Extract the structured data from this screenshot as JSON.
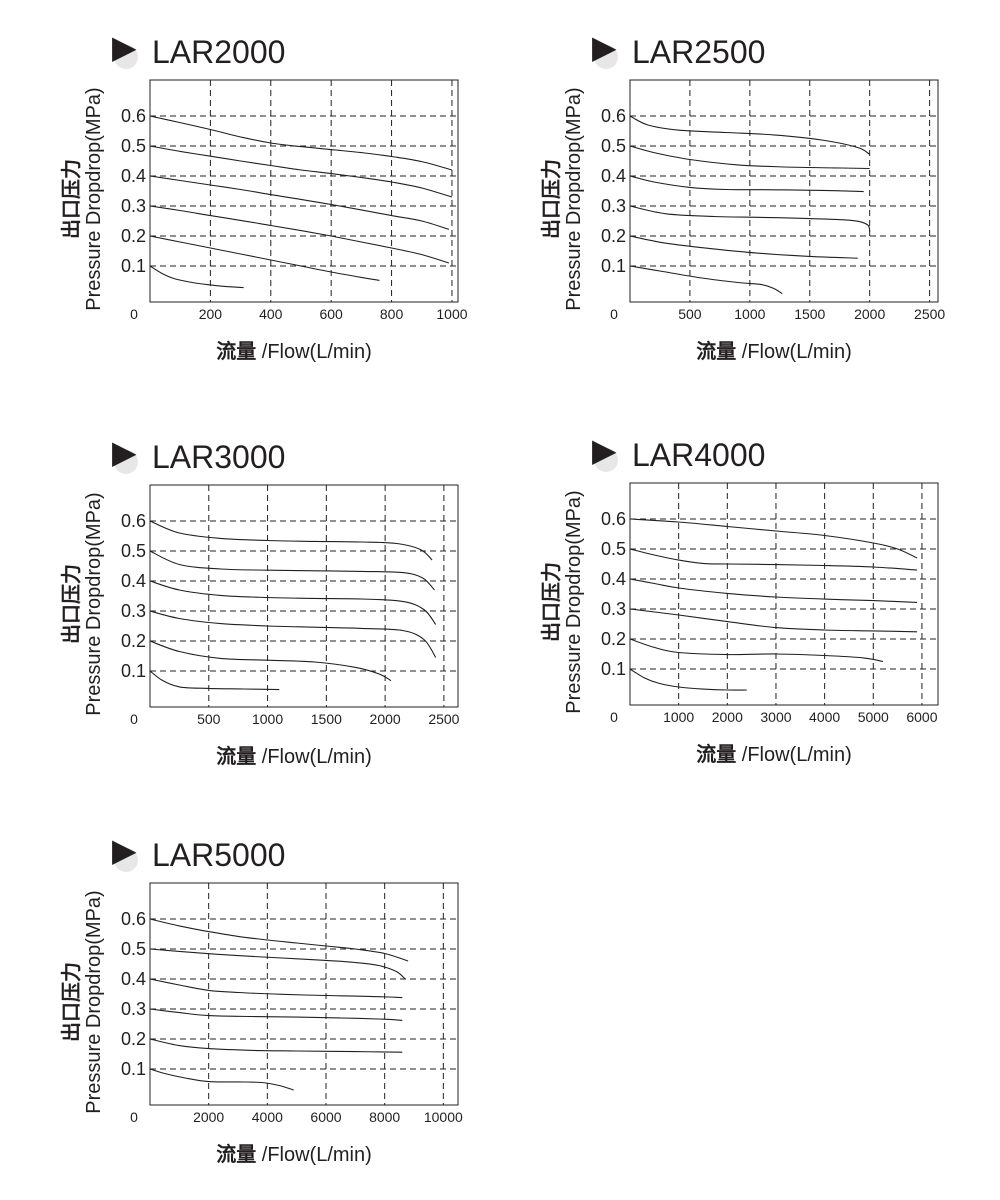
{
  "colors": {
    "ink": "#231f20",
    "grid": "#231f20",
    "title_shadow": "#bbbbbb"
  },
  "common": {
    "ylabel_cn": "出口压力",
    "ylabel_en": "Pressure Dropdrop(MPa)",
    "xlabel_cn": "流量",
    "xlabel_en": " /Flow(L/min)",
    "title_marker": "▶"
  },
  "chart_data": [
    {
      "type": "line",
      "title": "LAR2000",
      "xlabel": "流量 /Flow(L/min)",
      "ylabel": "出口压力 Pressure Dropdrop(MPa)",
      "xlim": [
        0,
        1020
      ],
      "ylim": [
        -0.02,
        0.72
      ],
      "xticks": [
        0,
        200,
        400,
        600,
        800,
        1000
      ],
      "xtick_labels": [
        "0",
        "200",
        "400",
        "600",
        "800",
        "1000"
      ],
      "yticks": [
        0.1,
        0.2,
        0.3,
        0.4,
        0.5,
        0.6
      ],
      "ytick_labels": [
        "0.1",
        "0.2",
        "0.3",
        "0.4",
        "0.5",
        "0.6"
      ],
      "grid": true,
      "series": [
        {
          "x": [
            0,
            100,
            200,
            300,
            400,
            500,
            600,
            700,
            800,
            900,
            1000
          ],
          "y": [
            0.6,
            0.578,
            0.555,
            0.53,
            0.51,
            0.498,
            0.488,
            0.478,
            0.465,
            0.448,
            0.42
          ]
        },
        {
          "x": [
            0,
            100,
            200,
            300,
            400,
            500,
            600,
            700,
            800,
            900,
            1000
          ],
          "y": [
            0.5,
            0.482,
            0.466,
            0.45,
            0.435,
            0.42,
            0.408,
            0.395,
            0.38,
            0.36,
            0.33
          ]
        },
        {
          "x": [
            0,
            100,
            200,
            300,
            400,
            500,
            600,
            700,
            800,
            900,
            990
          ],
          "y": [
            0.4,
            0.385,
            0.37,
            0.355,
            0.338,
            0.322,
            0.305,
            0.287,
            0.268,
            0.25,
            0.222
          ]
        },
        {
          "x": [
            0,
            100,
            200,
            300,
            400,
            500,
            600,
            700,
            800,
            900,
            990
          ],
          "y": [
            0.3,
            0.285,
            0.268,
            0.252,
            0.235,
            0.218,
            0.2,
            0.18,
            0.16,
            0.138,
            0.11
          ]
        },
        {
          "x": [
            0,
            100,
            200,
            300,
            400,
            500,
            600,
            700,
            760
          ],
          "y": [
            0.2,
            0.18,
            0.16,
            0.14,
            0.12,
            0.1,
            0.08,
            0.062,
            0.052
          ]
        },
        {
          "x": [
            0,
            40,
            80,
            140,
            200,
            260,
            310
          ],
          "y": [
            0.1,
            0.075,
            0.058,
            0.045,
            0.037,
            0.031,
            0.028
          ]
        }
      ]
    },
    {
      "type": "line",
      "title": "LAR2500",
      "xlabel": "流量 /Flow(L/min)",
      "ylabel": "出口压力 Pressure Dropdrop(MPa)",
      "xlim": [
        0,
        2570
      ],
      "ylim": [
        -0.02,
        0.72
      ],
      "xticks": [
        0,
        500,
        1000,
        1500,
        2000,
        2500
      ],
      "xtick_labels": [
        "0",
        "500",
        "1000",
        "1500",
        "2000",
        "2500"
      ],
      "yticks": [
        0.1,
        0.2,
        0.3,
        0.4,
        0.5,
        0.6
      ],
      "ytick_labels": [
        "0.1",
        "0.2",
        "0.3",
        "0.4",
        "0.5",
        "0.6"
      ],
      "grid": true,
      "series": [
        {
          "x": [
            0,
            150,
            400,
            800,
            1200,
            1600,
            1900,
            2000
          ],
          "y": [
            0.6,
            0.57,
            0.553,
            0.545,
            0.537,
            0.52,
            0.495,
            0.472
          ]
        },
        {
          "x": [
            0,
            200,
            500,
            900,
            1300,
            1700,
            2000
          ],
          "y": [
            0.5,
            0.478,
            0.455,
            0.437,
            0.43,
            0.427,
            0.425
          ]
        },
        {
          "x": [
            0,
            200,
            500,
            800,
            1200,
            1600,
            1950
          ],
          "y": [
            0.4,
            0.38,
            0.362,
            0.355,
            0.354,
            0.352,
            0.348
          ]
        },
        {
          "x": [
            0,
            300,
            700,
            1100,
            1500,
            1850,
            1980,
            2000
          ],
          "y": [
            0.3,
            0.274,
            0.265,
            0.262,
            0.258,
            0.252,
            0.238,
            0.215
          ]
        },
        {
          "x": [
            0,
            300,
            700,
            1100,
            1500,
            1900
          ],
          "y": [
            0.2,
            0.176,
            0.157,
            0.142,
            0.132,
            0.126
          ]
        },
        {
          "x": [
            0,
            300,
            600,
            900,
            1100,
            1200,
            1270
          ],
          "y": [
            0.1,
            0.08,
            0.06,
            0.045,
            0.038,
            0.025,
            0.008
          ]
        }
      ]
    },
    {
      "type": "line",
      "title": "LAR3000",
      "xlabel": "流量 /Flow(L/min)",
      "ylabel": "出口压力 Pressure Dropdrop(MPa)",
      "xlim": [
        0,
        2620
      ],
      "ylim": [
        -0.02,
        0.72
      ],
      "xticks": [
        0,
        500,
        1000,
        1500,
        2000,
        2500
      ],
      "xtick_labels": [
        "0",
        "500",
        "1000",
        "1500",
        "2000",
        "2500"
      ],
      "yticks": [
        0.1,
        0.2,
        0.3,
        0.4,
        0.5,
        0.6
      ],
      "ytick_labels": [
        "0.1",
        "0.2",
        "0.3",
        "0.4",
        "0.5",
        "0.6"
      ],
      "grid": true,
      "series": [
        {
          "x": [
            0,
            250,
            600,
            1000,
            1400,
            1800,
            2100,
            2300,
            2400
          ],
          "y": [
            0.6,
            0.56,
            0.542,
            0.535,
            0.532,
            0.53,
            0.525,
            0.505,
            0.47
          ]
        },
        {
          "x": [
            0,
            250,
            600,
            1000,
            1400,
            1800,
            2150,
            2320,
            2420
          ],
          "y": [
            0.5,
            0.455,
            0.44,
            0.436,
            0.434,
            0.432,
            0.428,
            0.41,
            0.37
          ]
        },
        {
          "x": [
            0,
            250,
            600,
            1000,
            1400,
            1800,
            2150,
            2330,
            2430
          ],
          "y": [
            0.4,
            0.37,
            0.352,
            0.345,
            0.342,
            0.34,
            0.332,
            0.305,
            0.255
          ]
        },
        {
          "x": [
            0,
            250,
            600,
            1000,
            1400,
            1800,
            2150,
            2330,
            2430
          ],
          "y": [
            0.3,
            0.275,
            0.258,
            0.25,
            0.246,
            0.242,
            0.235,
            0.205,
            0.145
          ]
        },
        {
          "x": [
            0,
            250,
            600,
            1000,
            1400,
            1750,
            1950,
            2050
          ],
          "y": [
            0.2,
            0.165,
            0.142,
            0.136,
            0.13,
            0.112,
            0.09,
            0.068
          ]
        },
        {
          "x": [
            0,
            100,
            250,
            500,
            800,
            1100
          ],
          "y": [
            0.1,
            0.07,
            0.047,
            0.042,
            0.04,
            0.038
          ]
        }
      ]
    },
    {
      "type": "line",
      "title": "LAR4000",
      "xlabel": "流量 /Flow(L/min)",
      "ylabel": "出口压力 Pressure Dropdrop(MPa)",
      "xlim": [
        0,
        6330
      ],
      "ylim": [
        -0.02,
        0.72
      ],
      "xticks": [
        0,
        1000,
        2000,
        3000,
        4000,
        5000,
        6000
      ],
      "xtick_labels": [
        "0",
        "1000",
        "2000",
        "3000",
        "4000",
        "5000",
        "6000"
      ],
      "yticks": [
        0.1,
        0.2,
        0.3,
        0.4,
        0.5,
        0.6
      ],
      "ytick_labels": [
        "0.1",
        "0.2",
        "0.3",
        "0.4",
        "0.5",
        "0.6"
      ],
      "grid": true,
      "series": [
        {
          "x": [
            0,
            1000,
            2000,
            3000,
            4000,
            5000,
            5500,
            5900
          ],
          "y": [
            0.6,
            0.59,
            0.575,
            0.56,
            0.545,
            0.52,
            0.5,
            0.47
          ]
        },
        {
          "x": [
            0,
            500,
            1000,
            1500,
            2000,
            3000,
            4000,
            5000,
            5900
          ],
          "y": [
            0.5,
            0.48,
            0.463,
            0.452,
            0.45,
            0.448,
            0.445,
            0.44,
            0.43
          ]
        },
        {
          "x": [
            0,
            500,
            1000,
            2000,
            3000,
            4000,
            5000,
            5900
          ],
          "y": [
            0.4,
            0.385,
            0.37,
            0.352,
            0.34,
            0.333,
            0.328,
            0.322
          ]
        },
        {
          "x": [
            0,
            1000,
            2000,
            3000,
            4000,
            5000,
            5900
          ],
          "y": [
            0.3,
            0.28,
            0.258,
            0.238,
            0.23,
            0.227,
            0.224
          ]
        },
        {
          "x": [
            0,
            500,
            1000,
            2000,
            3000,
            4000,
            4800,
            5200
          ],
          "y": [
            0.2,
            0.172,
            0.155,
            0.148,
            0.15,
            0.145,
            0.137,
            0.125
          ]
        },
        {
          "x": [
            0,
            300,
            600,
            1000,
            1500,
            2000,
            2400
          ],
          "y": [
            0.1,
            0.07,
            0.052,
            0.04,
            0.033,
            0.03,
            0.03
          ]
        }
      ]
    },
    {
      "type": "line",
      "title": "LAR5000",
      "xlabel": "流量 /Flow(L/min)",
      "ylabel": "出口压力 Pressure Dropdrop(MPa)",
      "xlim": [
        0,
        10500
      ],
      "ylim": [
        -0.02,
        0.72
      ],
      "xticks": [
        0,
        2000,
        4000,
        6000,
        8000,
        10000
      ],
      "xtick_labels": [
        "0",
        "2000",
        "4000",
        "6000",
        "8000",
        "10000"
      ],
      "yticks": [
        0.1,
        0.2,
        0.3,
        0.4,
        0.5,
        0.6
      ],
      "ytick_labels": [
        "0.1",
        "0.2",
        "0.3",
        "0.4",
        "0.5",
        "0.6"
      ],
      "grid": true,
      "series": [
        {
          "x": [
            0,
            1000,
            2000,
            3000,
            4000,
            5000,
            6000,
            7000,
            8000,
            8800
          ],
          "y": [
            0.6,
            0.577,
            0.558,
            0.542,
            0.53,
            0.52,
            0.51,
            0.5,
            0.485,
            0.46
          ]
        },
        {
          "x": [
            0,
            1500,
            3000,
            4500,
            6000,
            7000,
            7800,
            8400,
            8700
          ],
          "y": [
            0.5,
            0.488,
            0.478,
            0.47,
            0.462,
            0.455,
            0.445,
            0.425,
            0.4
          ]
        },
        {
          "x": [
            0,
            1000,
            2000,
            3000,
            4500,
            6000,
            7500,
            8600
          ],
          "y": [
            0.4,
            0.38,
            0.362,
            0.355,
            0.349,
            0.345,
            0.342,
            0.338
          ]
        },
        {
          "x": [
            0,
            1000,
            2000,
            3500,
            5000,
            6500,
            8000,
            8600
          ],
          "y": [
            0.3,
            0.288,
            0.278,
            0.275,
            0.273,
            0.27,
            0.266,
            0.262
          ]
        },
        {
          "x": [
            0,
            1000,
            2000,
            3500,
            5000,
            7000,
            8600
          ],
          "y": [
            0.2,
            0.178,
            0.168,
            0.162,
            0.16,
            0.158,
            0.156
          ]
        },
        {
          "x": [
            0,
            500,
            1200,
            2000,
            3000,
            3800,
            4400,
            4900
          ],
          "y": [
            0.1,
            0.085,
            0.07,
            0.058,
            0.057,
            0.055,
            0.045,
            0.03
          ]
        }
      ]
    }
  ]
}
